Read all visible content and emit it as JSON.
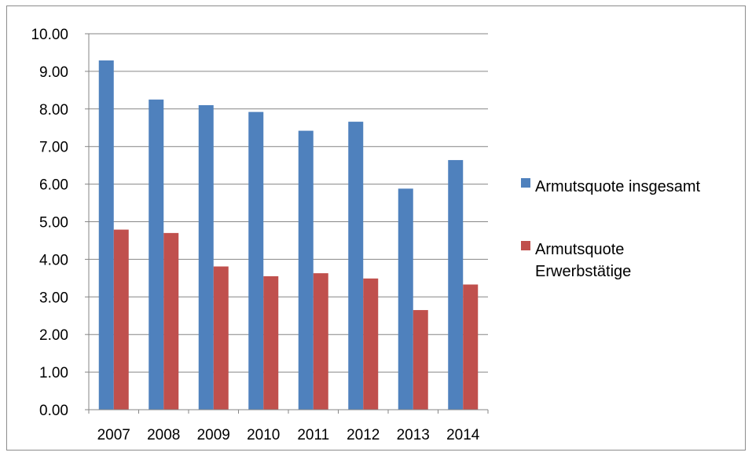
{
  "chart_data": {
    "type": "bar",
    "categories": [
      "2007",
      "2008",
      "2009",
      "2010",
      "2011",
      "2012",
      "2013",
      "2014"
    ],
    "series": [
      {
        "name": "Armutsquote insgesamt",
        "color": "#4f81bd",
        "values": [
          9.29,
          8.25,
          8.1,
          7.92,
          7.42,
          7.66,
          5.88,
          6.64
        ]
      },
      {
        "name": "Armutsquote Erwerbstätige",
        "color": "#c0504d",
        "values": [
          4.79,
          4.7,
          3.81,
          3.55,
          3.63,
          3.49,
          2.65,
          3.33
        ]
      }
    ],
    "y_ticks": [
      "0.00",
      "1.00",
      "2.00",
      "3.00",
      "4.00",
      "5.00",
      "6.00",
      "7.00",
      "8.00",
      "9.00",
      "10.00"
    ],
    "ylim": [
      0,
      10
    ],
    "grid": true,
    "gridline_color": "#868686",
    "legend_position": "right",
    "legend": [
      {
        "lines": [
          "Armutsquote insgesamt"
        ]
      },
      {
        "lines": [
          "Armutsquote",
          "Erwerbstätige"
        ]
      }
    ]
  }
}
